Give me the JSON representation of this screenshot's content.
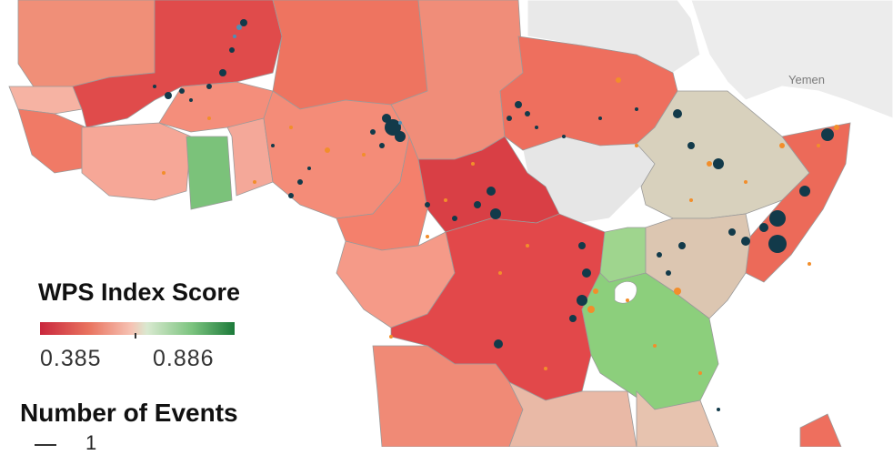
{
  "map": {
    "country_label": "Yemen",
    "colors": {
      "ocean": "#ffffff",
      "no_data": "#e6e6e6",
      "border": "#9a9a9a",
      "event_dark": "#123a4a",
      "event_orange": "#f28e2b",
      "event_blue": "#4e8fb6"
    }
  },
  "legend": {
    "wps": {
      "title": "WPS Index Score",
      "min": "0.385",
      "max": "0.886",
      "colors": [
        "#c9273d",
        "#e9735f",
        "#f6c3b4",
        "#d9e9d0",
        "#7cc47f",
        "#1c7a3a"
      ]
    },
    "events": {
      "title": "Number of Events",
      "first_value": "1"
    }
  }
}
